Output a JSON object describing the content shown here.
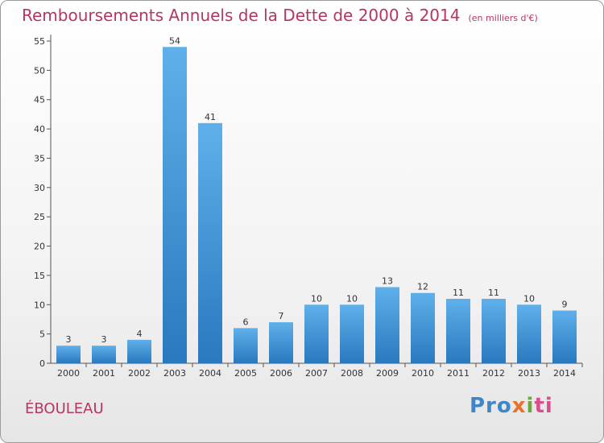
{
  "chart_data": {
    "type": "bar",
    "title": "Remboursements Annuels de la Dette de 2000 à 2014",
    "unit_note": "(en milliers d'€)",
    "xlabel": "",
    "ylabel": "",
    "categories": [
      "2000",
      "2001",
      "2002",
      "2003",
      "2004",
      "2005",
      "2006",
      "2007",
      "2008",
      "2009",
      "2010",
      "2011",
      "2012",
      "2013",
      "2014"
    ],
    "values": [
      3,
      3,
      4,
      54,
      41,
      6,
      7,
      10,
      10,
      13,
      12,
      11,
      11,
      10,
      9
    ],
    "data_labels": [
      "3",
      "3",
      "4",
      "54",
      "41",
      "6",
      "7",
      "10",
      "10",
      "13",
      "12",
      "11",
      "11",
      "10",
      "9"
    ],
    "ylim": [
      0,
      55
    ],
    "yticks": [
      0,
      5,
      10,
      15,
      20,
      25,
      30,
      35,
      40,
      45,
      50,
      55
    ],
    "grid": false,
    "bar_color": "#4a9fe0"
  },
  "town_name": "ÉBOULEAU",
  "logo": {
    "part1": "Pro",
    "part2": "x",
    "part3": "i",
    "part4": "ti"
  }
}
